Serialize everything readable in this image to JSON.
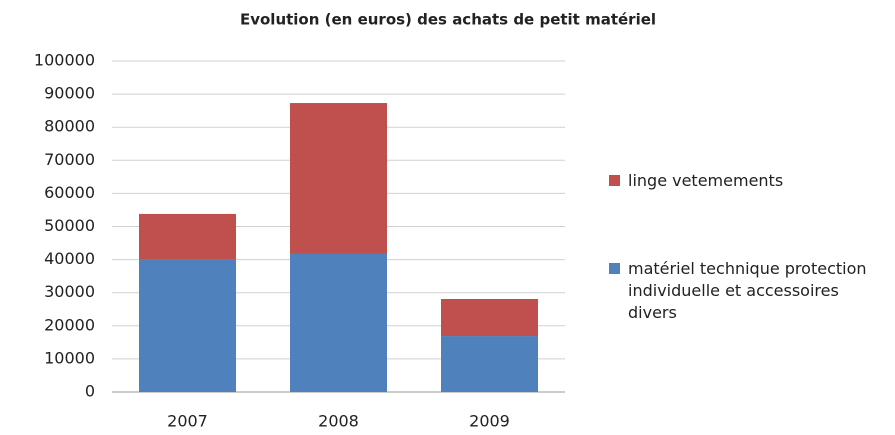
{
  "chart_data": {
    "type": "stacked_bar",
    "title": "Evolution (en euros) des achats de petit matériel",
    "categories": [
      "2007",
      "2008",
      "2009"
    ],
    "series": [
      {
        "name": "matériel technique protection individuelle et accessoires divers",
        "color": "#4f81bd",
        "values": [
          40000,
          41700,
          16900
        ]
      },
      {
        "name": "linge vetemements",
        "color": "#c0504d",
        "values": [
          13800,
          45600,
          11200
        ]
      }
    ],
    "ylim": [
      0,
      100000
    ],
    "yticks": [
      0,
      10000,
      20000,
      30000,
      40000,
      50000,
      60000,
      70000,
      80000,
      90000,
      100000
    ],
    "grid": true,
    "legend": "right"
  }
}
